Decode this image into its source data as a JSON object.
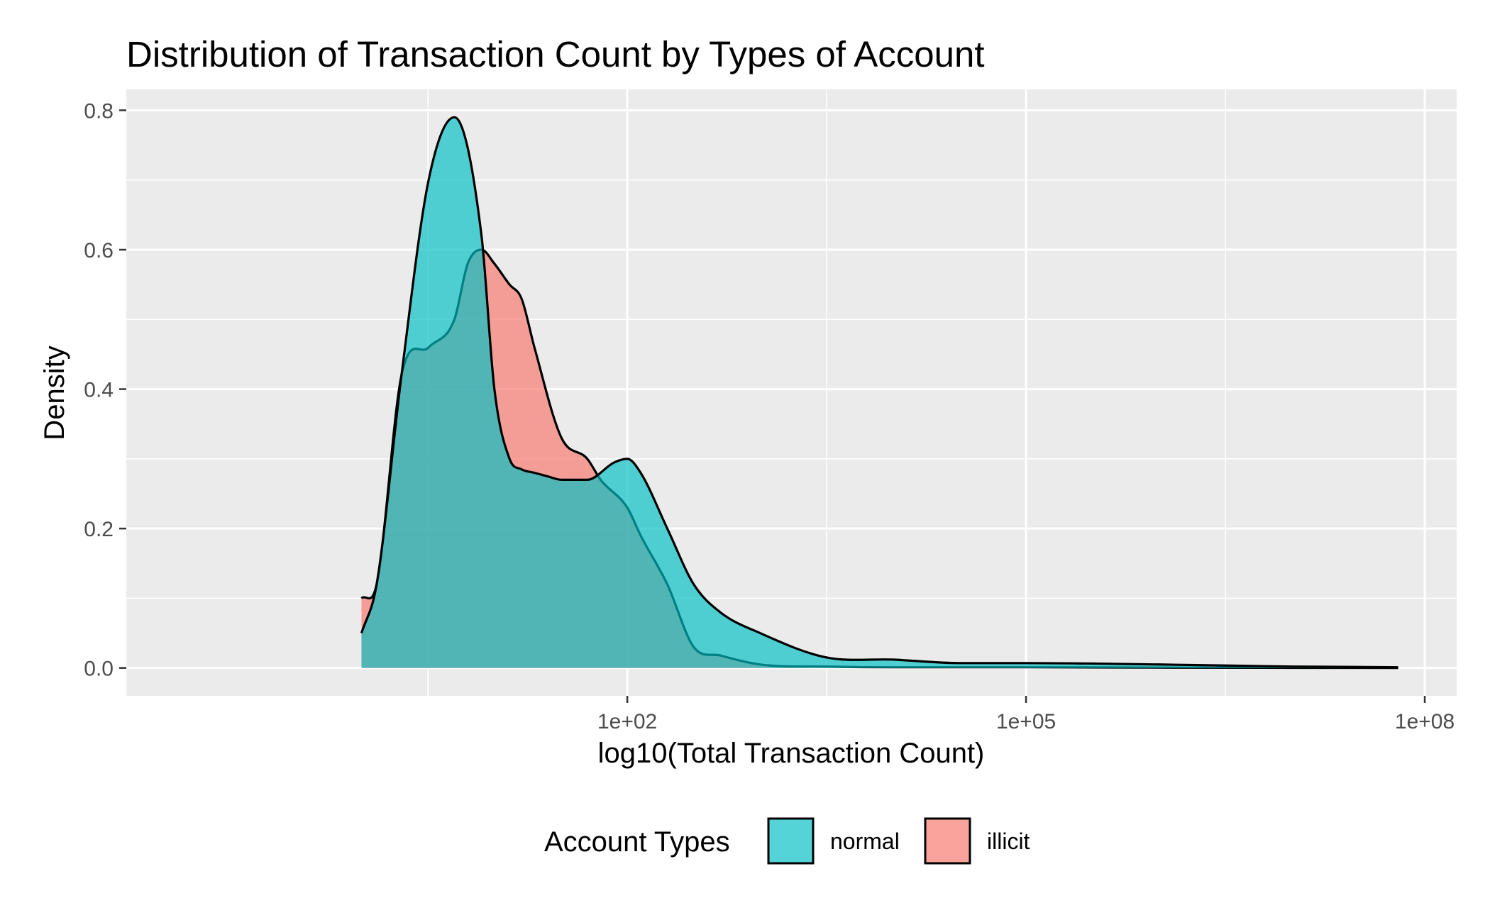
{
  "chart_data": {
    "type": "area",
    "title": "Distribution of Transaction Count by Types of Account",
    "xlabel": "log10(Total Transaction Count)",
    "ylabel": "Density",
    "x_scale": "log10",
    "xlim": [
      0.017,
      173780000
    ],
    "ylim": [
      -0.04,
      0.83
    ],
    "x_ticks": [
      {
        "value": 100,
        "label": "1e+02"
      },
      {
        "value": 100000,
        "label": "1e+05"
      },
      {
        "value": 100000000,
        "label": "1e+08"
      }
    ],
    "y_ticks": [
      {
        "value": 0.0,
        "label": "0.0"
      },
      {
        "value": 0.2,
        "label": "0.2"
      },
      {
        "value": 0.4,
        "label": "0.4"
      },
      {
        "value": 0.6,
        "label": "0.6"
      },
      {
        "value": 0.8,
        "label": "0.8"
      }
    ],
    "grid": true,
    "legend": {
      "title": "Account Types",
      "position": "bottom"
    },
    "series": [
      {
        "name": "normal",
        "color": "#00BFC4",
        "x": [
          1,
          1.3,
          2,
          3.2,
          5,
          8,
          10,
          13,
          16,
          20,
          25,
          32,
          50,
          80,
          100,
          126,
          200,
          316,
          500,
          1000,
          3162,
          10000,
          31623,
          100000,
          1000000,
          10000000,
          63100000
        ],
        "y": [
          0.05,
          0.12,
          0.42,
          0.7,
          0.79,
          0.62,
          0.4,
          0.3,
          0.285,
          0.28,
          0.275,
          0.27,
          0.27,
          0.295,
          0.3,
          0.28,
          0.2,
          0.12,
          0.08,
          0.05,
          0.015,
          0.012,
          0.007,
          0.007,
          0.005,
          0.002,
          0.001
        ]
      },
      {
        "name": "illicit",
        "color": "#F8766D",
        "x": [
          1,
          1.3,
          2,
          3.2,
          5,
          6.3,
          8,
          10,
          13,
          16,
          20,
          32,
          50,
          63,
          100,
          126,
          200,
          316,
          500,
          1000,
          3162,
          10000,
          31623,
          100000,
          1000000,
          10000000,
          63100000
        ],
        "y": [
          0.1,
          0.12,
          0.42,
          0.46,
          0.5,
          0.58,
          0.6,
          0.58,
          0.55,
          0.53,
          0.46,
          0.33,
          0.3,
          0.27,
          0.23,
          0.19,
          0.12,
          0.03,
          0.018,
          0.005,
          0.002,
          0.001,
          0.001,
          0.001,
          0.0005,
          0.0002,
          0.0001
        ]
      }
    ]
  }
}
